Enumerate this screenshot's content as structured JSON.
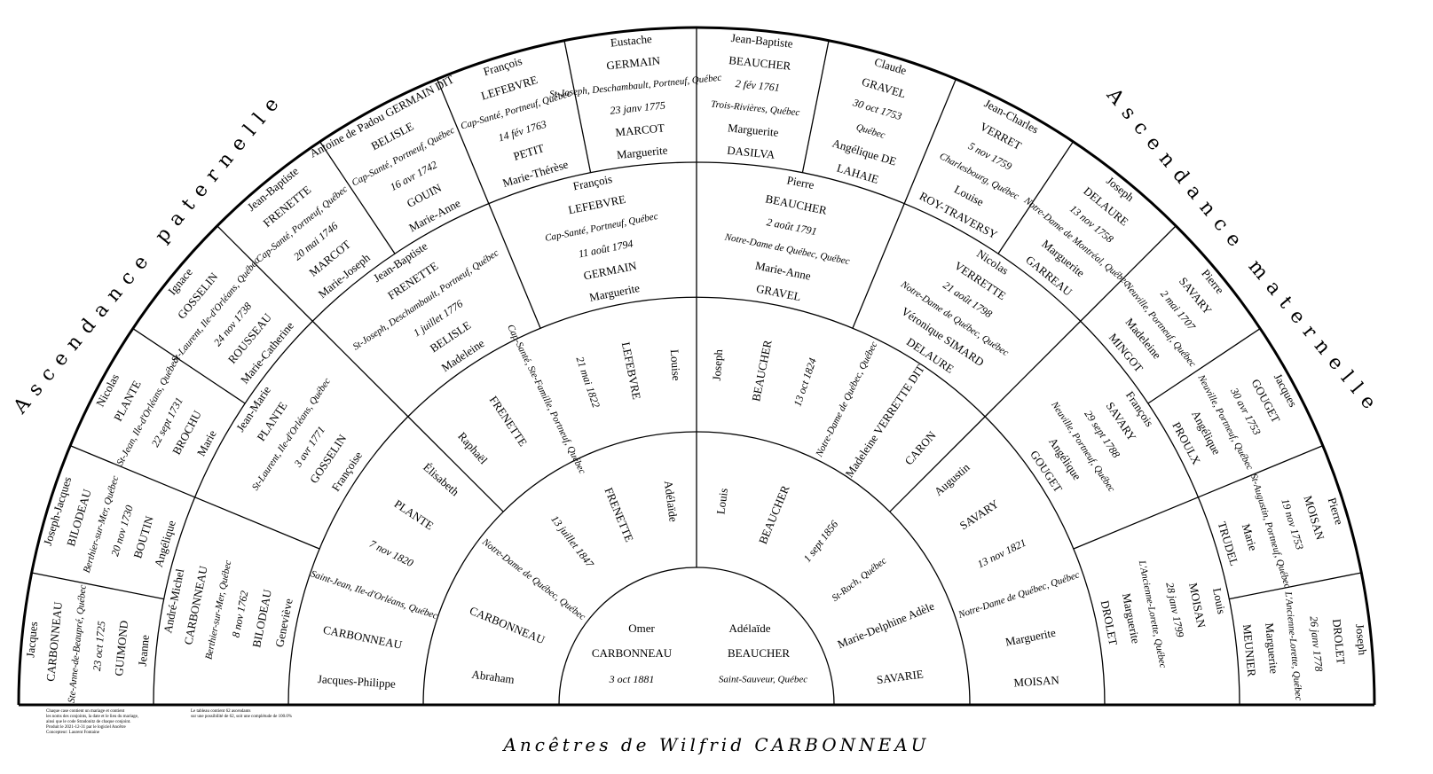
{
  "title": "Ancêtres de Wilfrid CARBONNEAU",
  "paternal_label": "Ascendance paternelle",
  "maternal_label": "Ascendance maternelle",
  "notes": {
    "left": "Chaque case contient un mariage et contient\nles noms des conjoints, la date et le lieu du mariage,\nainsi que le code Stradonitz de chaque conjoint.\nProduit le 2021-12-31 par le logiciel Ancêtre\nConcepteur: Laurent Fontaine",
    "right": "Le tableau contient 62 ascendants\nsur une possibilité de 62, soit une complétude de 100.0%"
  },
  "center": {
    "husband": [
      "Omer",
      "CARBONNEAU"
    ],
    "wife": [
      "Adélaïde",
      "BEAUCHER"
    ],
    "date": "3 oct 1881",
    "place": "Saint-Sauveur, Québec"
  },
  "ring1": [
    {
      "lines": [
        "Abraham",
        "CARBONNEAU",
        "Notre-Dame de Québec, Québec",
        "13 juillet 1847",
        "FRENETTE",
        "Adélaïde"
      ],
      "styles": [
        "name",
        "name",
        "place",
        "date",
        "name",
        "name"
      ]
    },
    {
      "lines": [
        "Louis",
        "BEAUCHER",
        "1 sept 1856",
        "St-Roch, Québec",
        "Marie-Delphine Adèle",
        "SAVARIE"
      ],
      "styles": [
        "name",
        "name",
        "date",
        "place",
        "name",
        "name"
      ]
    }
  ],
  "ring2": [
    {
      "lines": [
        "Jacques-Philippe",
        "CARBONNEAU",
        "Saint-Jean, Ile-d'Orléans, Québec",
        "7 nov 1820",
        "PLANTE",
        "Élisabeth"
      ],
      "styles": [
        "name",
        "name",
        "place",
        "date",
        "name",
        "name"
      ]
    },
    {
      "lines": [
        "Raphaël",
        "FRENETTE",
        "Cap-Santé, Ste-Famille, Portneuf, Québec",
        "21 mai 1822",
        "LEFEBVRE",
        "Louise"
      ],
      "styles": [
        "name",
        "name",
        "place",
        "date",
        "name",
        "name"
      ]
    },
    {
      "lines": [
        "Joseph",
        "BEAUCHER",
        "13 oct 1824",
        "Notre-Dame de Québec, Québec",
        "Madeleine VERRETTE DIT",
        "CARON"
      ],
      "styles": [
        "name",
        "name",
        "date",
        "place",
        "name",
        "name"
      ]
    },
    {
      "lines": [
        "Augustin",
        "SAVARY",
        "13 nov 1821",
        "Notre-Dame de Québec, Québec",
        "Marguerite",
        "MOISAN"
      ],
      "styles": [
        "name",
        "name",
        "date",
        "place",
        "name",
        "name"
      ]
    }
  ],
  "ring3": [
    {
      "lines": [
        "André-Michel",
        "CARBONNEAU",
        "Berthier-sur-Mer, Québec",
        "8 nov 1762",
        "BILODEAU",
        "Geneviève"
      ],
      "styles": [
        "name",
        "name",
        "place",
        "date",
        "name",
        "name"
      ]
    },
    {
      "lines": [
        "Jean-Marie",
        "PLANTE",
        "St-Laurent, Ile-d'Orléans, Québec",
        "3 avr 1771",
        "GOSSELIN",
        "Françoise"
      ],
      "styles": [
        "name",
        "name",
        "place",
        "date",
        "name",
        "name"
      ]
    },
    {
      "lines": [
        "Jean-Baptiste",
        "FRENETTE",
        "St-Joseph, Deschambault, Portneuf, Québec",
        "1 juillet 1776",
        "BELISLE",
        "Madeleine"
      ],
      "styles": [
        "name",
        "name",
        "place",
        "date",
        "name",
        "name"
      ]
    },
    {
      "lines": [
        "François",
        "LEFEBVRE",
        "Cap-Santé, Portneuf, Québec",
        "11 août 1794",
        "GERMAIN",
        "Marguerite"
      ],
      "styles": [
        "name",
        "name",
        "place",
        "date",
        "name",
        "name"
      ]
    },
    {
      "lines": [
        "Pierre",
        "BEAUCHER",
        "2 août 1791",
        "Notre-Dame de Québec, Québec",
        "Marie-Anne",
        "GRAVEL"
      ],
      "styles": [
        "name",
        "name",
        "date",
        "place",
        "name",
        "name"
      ]
    },
    {
      "lines": [
        "Nicolas",
        "VERRETTE",
        "21 août 1798",
        "Notre-Dame de Québec, Québec",
        "Véronique SIMARD",
        "DELAURE"
      ],
      "styles": [
        "name",
        "name",
        "date",
        "place",
        "name",
        "name"
      ]
    },
    {
      "lines": [
        "François",
        "SAVARY",
        "29 sept 1788",
        "Neuville, Portneuf, Québec",
        "Angélique",
        "GOUGET"
      ],
      "styles": [
        "name",
        "name",
        "date",
        "place",
        "name",
        "name"
      ]
    },
    {
      "lines": [
        "Louis",
        "MOISAN",
        "28 janv 1799",
        "L'Ancienne-Lorette, Québec",
        "Marguerite",
        "DROLET"
      ],
      "styles": [
        "name",
        "name",
        "date",
        "place",
        "name",
        "name"
      ]
    }
  ],
  "ring4": [
    {
      "lines": [
        "Jacques",
        "CARBONNEAU",
        "Ste-Anne-de-Beaupré, Québec",
        "23 oct 1725",
        "GUIMOND",
        "Jeanne"
      ],
      "styles": [
        "name",
        "name",
        "place",
        "date",
        "name",
        "name"
      ]
    },
    {
      "lines": [
        "Joseph-Jacques",
        "BILODEAU",
        "Berthier-sur-Mer, Québec",
        "20 nov 1730",
        "BOUTIN",
        "Angélique"
      ],
      "styles": [
        "name",
        "name",
        "place",
        "date",
        "name",
        "name"
      ]
    },
    {
      "lines": [
        "Nicolas",
        "PLANTE",
        "St-Jean, Ile-d'Orléans, Québec",
        "22 sept 1731",
        "BROCHU",
        "Marie"
      ],
      "styles": [
        "name",
        "name",
        "place",
        "date",
        "name",
        "name"
      ]
    },
    {
      "lines": [
        "Ignace",
        "GOSSELIN",
        "St-Laurent, Ile-d'Orléans, Québec",
        "24 nov 1738",
        "ROUSSEAU",
        "Marie-Catherine"
      ],
      "styles": [
        "name",
        "name",
        "place",
        "date",
        "name",
        "name"
      ]
    },
    {
      "lines": [
        "Jean-Baptiste",
        "FRENETTE",
        "Cap-Santé, Portneuf, Québec",
        "20 mai 1746",
        "MARCOT",
        "Marie-Joseph"
      ],
      "styles": [
        "name",
        "name",
        "place",
        "date",
        "name",
        "name"
      ]
    },
    {
      "lines": [
        "Antoine de Padou GERMAIN DIT",
        "BELISLE",
        "Cap-Santé, Portneuf, Québec",
        "16 avr 1742",
        "GOUIN",
        "Marie-Anne"
      ],
      "styles": [
        "name",
        "name",
        "place",
        "date",
        "name",
        "name"
      ]
    },
    {
      "lines": [
        "François",
        "LEFEBVRE",
        "Cap-Santé, Portneuf, Québec",
        "14 fév 1763",
        "PETIT",
        "Marie-Thérèse"
      ],
      "styles": [
        "name",
        "name",
        "place",
        "date",
        "name",
        "name"
      ]
    },
    {
      "lines": [
        "Eustache",
        "GERMAIN",
        "St-Joseph, Deschambault, Portneuf, Québec",
        "23 janv 1775",
        "MARCOT",
        "Marguerite"
      ],
      "styles": [
        "name",
        "name",
        "place",
        "date",
        "name",
        "name"
      ]
    },
    {
      "lines": [
        "Jean-Baptiste",
        "BEAUCHER",
        "2 fév 1761",
        "Trois-Rivières, Québec",
        "Marguerite",
        "DASILVA"
      ],
      "styles": [
        "name",
        "name",
        "date",
        "place",
        "name",
        "name"
      ]
    },
    {
      "lines": [
        "Claude",
        "GRAVEL",
        "30 oct 1753",
        "Québec",
        "Angélique DE",
        "LAHAIE"
      ],
      "styles": [
        "name",
        "name",
        "date",
        "place",
        "name",
        "name"
      ]
    },
    {
      "lines": [
        "Jean-Charles",
        "VERRET",
        "5 nov 1759",
        "Charlesbourg, Québec",
        "Louise",
        "ROY-TRAVERSY"
      ],
      "styles": [
        "name",
        "name",
        "date",
        "place",
        "name",
        "name"
      ]
    },
    {
      "lines": [
        "Joseph",
        "DELAURE",
        "13 nov 1758",
        "Notre-Dame de Montréal, Québec",
        "Marguerite",
        "GARREAU"
      ],
      "styles": [
        "name",
        "name",
        "date",
        "place",
        "name",
        "name"
      ]
    },
    {
      "lines": [
        "Pierre",
        "SAVARY",
        "2 mai 1707",
        "Neuville, Portneuf, Québec",
        "Madeleine",
        "MINGOT"
      ],
      "styles": [
        "name",
        "name",
        "date",
        "place",
        "name",
        "name"
      ]
    },
    {
      "lines": [
        "Jacques",
        "GOUGET",
        "30 avr 1753",
        "Neuville, Portneuf, Québec",
        "Angélique",
        "PROULX"
      ],
      "styles": [
        "name",
        "name",
        "date",
        "place",
        "name",
        "name"
      ]
    },
    {
      "lines": [
        "Pierre",
        "MOISAN",
        "19 nov 1753",
        "St-Augustin, Portneuf, Québec",
        "Marie",
        "TRUDEL"
      ],
      "styles": [
        "name",
        "name",
        "date",
        "place",
        "name",
        "name"
      ]
    },
    {
      "lines": [
        "Joseph",
        "DROLET",
        "26 janv 1778",
        "L'Ancienne-Lorette, Québec",
        "Marguerite",
        "MEUNIER"
      ],
      "styles": [
        "name",
        "name",
        "date",
        "place",
        "name",
        "name"
      ]
    }
  ]
}
